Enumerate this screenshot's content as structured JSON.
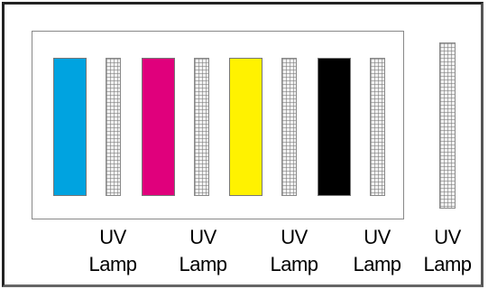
{
  "inks": [
    {
      "name": "cyan",
      "color": "#00a3e0"
    },
    {
      "name": "magenta",
      "color": "#e0007c"
    },
    {
      "name": "yellow",
      "color": "#fff200"
    },
    {
      "name": "black",
      "color": "#000000"
    }
  ],
  "lamp_labels": [
    {
      "line1": "UV",
      "line2": "Lamp"
    },
    {
      "line1": "UV",
      "line2": "Lamp"
    },
    {
      "line1": "UV",
      "line2": "Lamp"
    },
    {
      "line1": "UV",
      "line2": "Lamp"
    },
    {
      "line1": "UV",
      "line2": "Lamp"
    }
  ]
}
